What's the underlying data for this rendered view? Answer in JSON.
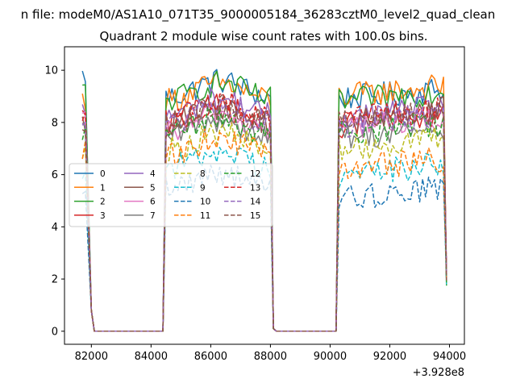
{
  "figure": {
    "suptitle": "n file: modeM0/AS1A10_071T35_9000005184_36283cztM0_level2_quad_clean",
    "title": "Quadrant 2 module wise count rates with 100.0s bins."
  },
  "chart_data": {
    "type": "line",
    "title": "Quadrant 2 module wise count rates with 100.0s bins.",
    "xlabel": "",
    "ylabel": "",
    "x_offset_label": "+3.928e8",
    "xlim": [
      81100,
      94500
    ],
    "ylim": [
      -0.5,
      10.9
    ],
    "xticks": [
      82000,
      84000,
      86000,
      88000,
      90000,
      92000,
      94000
    ],
    "xtick_labels": [
      "82000",
      "84000",
      "86000",
      "88000",
      "90000",
      "92000",
      "94000"
    ],
    "yticks": [
      0,
      2,
      4,
      6,
      8,
      10
    ],
    "ytick_labels": [
      "0",
      "2",
      "4",
      "6",
      "8",
      "10"
    ],
    "grid": false,
    "legend_position": "center-left",
    "legend_columns": 4,
    "segments": [
      {
        "start": 81700,
        "end": 82100
      },
      {
        "start": 84500,
        "end": 88100
      },
      {
        "start": 90300,
        "end": 93900
      }
    ],
    "series": [
      {
        "name": "0",
        "color": "#1f77b4",
        "dash": "solid",
        "levels": [
          9.8,
          8.9,
          8.9
        ]
      },
      {
        "name": "1",
        "color": "#ff7f0e",
        "dash": "solid",
        "levels": [
          8.9,
          8.8,
          9.0
        ]
      },
      {
        "name": "2",
        "color": "#2ca02c",
        "dash": "solid",
        "levels": [
          9.2,
          8.8,
          8.8
        ]
      },
      {
        "name": "3",
        "color": "#d62728",
        "dash": "solid",
        "levels": [
          8.2,
          7.9,
          7.9
        ]
      },
      {
        "name": "4",
        "color": "#9467bd",
        "dash": "solid",
        "levels": [
          8.4,
          8.2,
          8.2
        ]
      },
      {
        "name": "5",
        "color": "#8c564b",
        "dash": "solid",
        "levels": [
          7.9,
          7.9,
          8.1
        ]
      },
      {
        "name": "6",
        "color": "#e377c2",
        "dash": "solid",
        "levels": [
          8.0,
          7.6,
          7.8
        ]
      },
      {
        "name": "7",
        "color": "#7f7f7f",
        "dash": "solid",
        "levels": [
          7.6,
          7.4,
          7.4
        ]
      },
      {
        "name": "8",
        "color": "#bcbd22",
        "dash": "dashed",
        "levels": [
          7.0,
          6.9,
          7.0
        ]
      },
      {
        "name": "9",
        "color": "#17becf",
        "dash": "dashed",
        "levels": [
          6.2,
          6.2,
          6.0
        ]
      },
      {
        "name": "10",
        "color": "#1f77b4",
        "dash": "dashed",
        "levels": [
          5.6,
          5.4,
          5.1
        ]
      },
      {
        "name": "11",
        "color": "#ff7f0e",
        "dash": "dashed",
        "levels": [
          6.9,
          6.7,
          6.2
        ]
      },
      {
        "name": "12",
        "color": "#2ca02c",
        "dash": "dashed",
        "levels": [
          7.6,
          7.5,
          7.6
        ]
      },
      {
        "name": "13",
        "color": "#d62728",
        "dash": "dashed",
        "levels": [
          8.3,
          8.1,
          8.1
        ]
      },
      {
        "name": "14",
        "color": "#9467bd",
        "dash": "dashed",
        "levels": [
          8.1,
          7.9,
          7.9
        ]
      },
      {
        "name": "15",
        "color": "#8c564b",
        "dash": "dashed",
        "levels": [
          7.9,
          7.9,
          8.0
        ]
      }
    ]
  }
}
